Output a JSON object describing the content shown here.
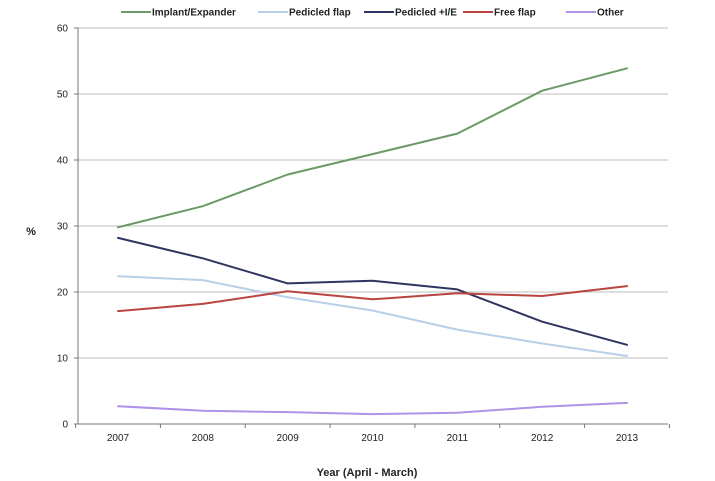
{
  "chart_data": {
    "type": "line",
    "x": [
      "2007",
      "2008",
      "2009",
      "2010",
      "2011",
      "2012",
      "2013"
    ],
    "xlabel": "Year (April - March)",
    "ylabel": "%",
    "ylim": [
      0,
      60
    ],
    "yticks": [
      0,
      10,
      20,
      30,
      40,
      50,
      60
    ],
    "grid": "horizontal",
    "legend_position": "top",
    "series": [
      {
        "name": "Implant/Expander",
        "color": "#6b9a66",
        "values": [
          29.8,
          33.0,
          37.8,
          40.9,
          44.0,
          50.5,
          53.9
        ]
      },
      {
        "name": "Pedicled flap",
        "color": "#b9cfe8",
        "values": [
          22.4,
          21.8,
          19.2,
          17.2,
          14.3,
          12.2,
          10.3
        ]
      },
      {
        "name": "Pedicled +I/E",
        "color": "#2f3560",
        "values": [
          28.2,
          25.1,
          21.3,
          21.7,
          20.4,
          15.5,
          12.0
        ]
      },
      {
        "name": "Free flap",
        "color": "#b8453f",
        "values": [
          17.1,
          18.2,
          20.1,
          18.9,
          19.8,
          19.4,
          20.9
        ]
      },
      {
        "name": "Other",
        "color": "#ad92e6",
        "values": [
          2.7,
          2.0,
          1.8,
          1.5,
          1.7,
          2.6,
          3.2
        ]
      }
    ]
  }
}
